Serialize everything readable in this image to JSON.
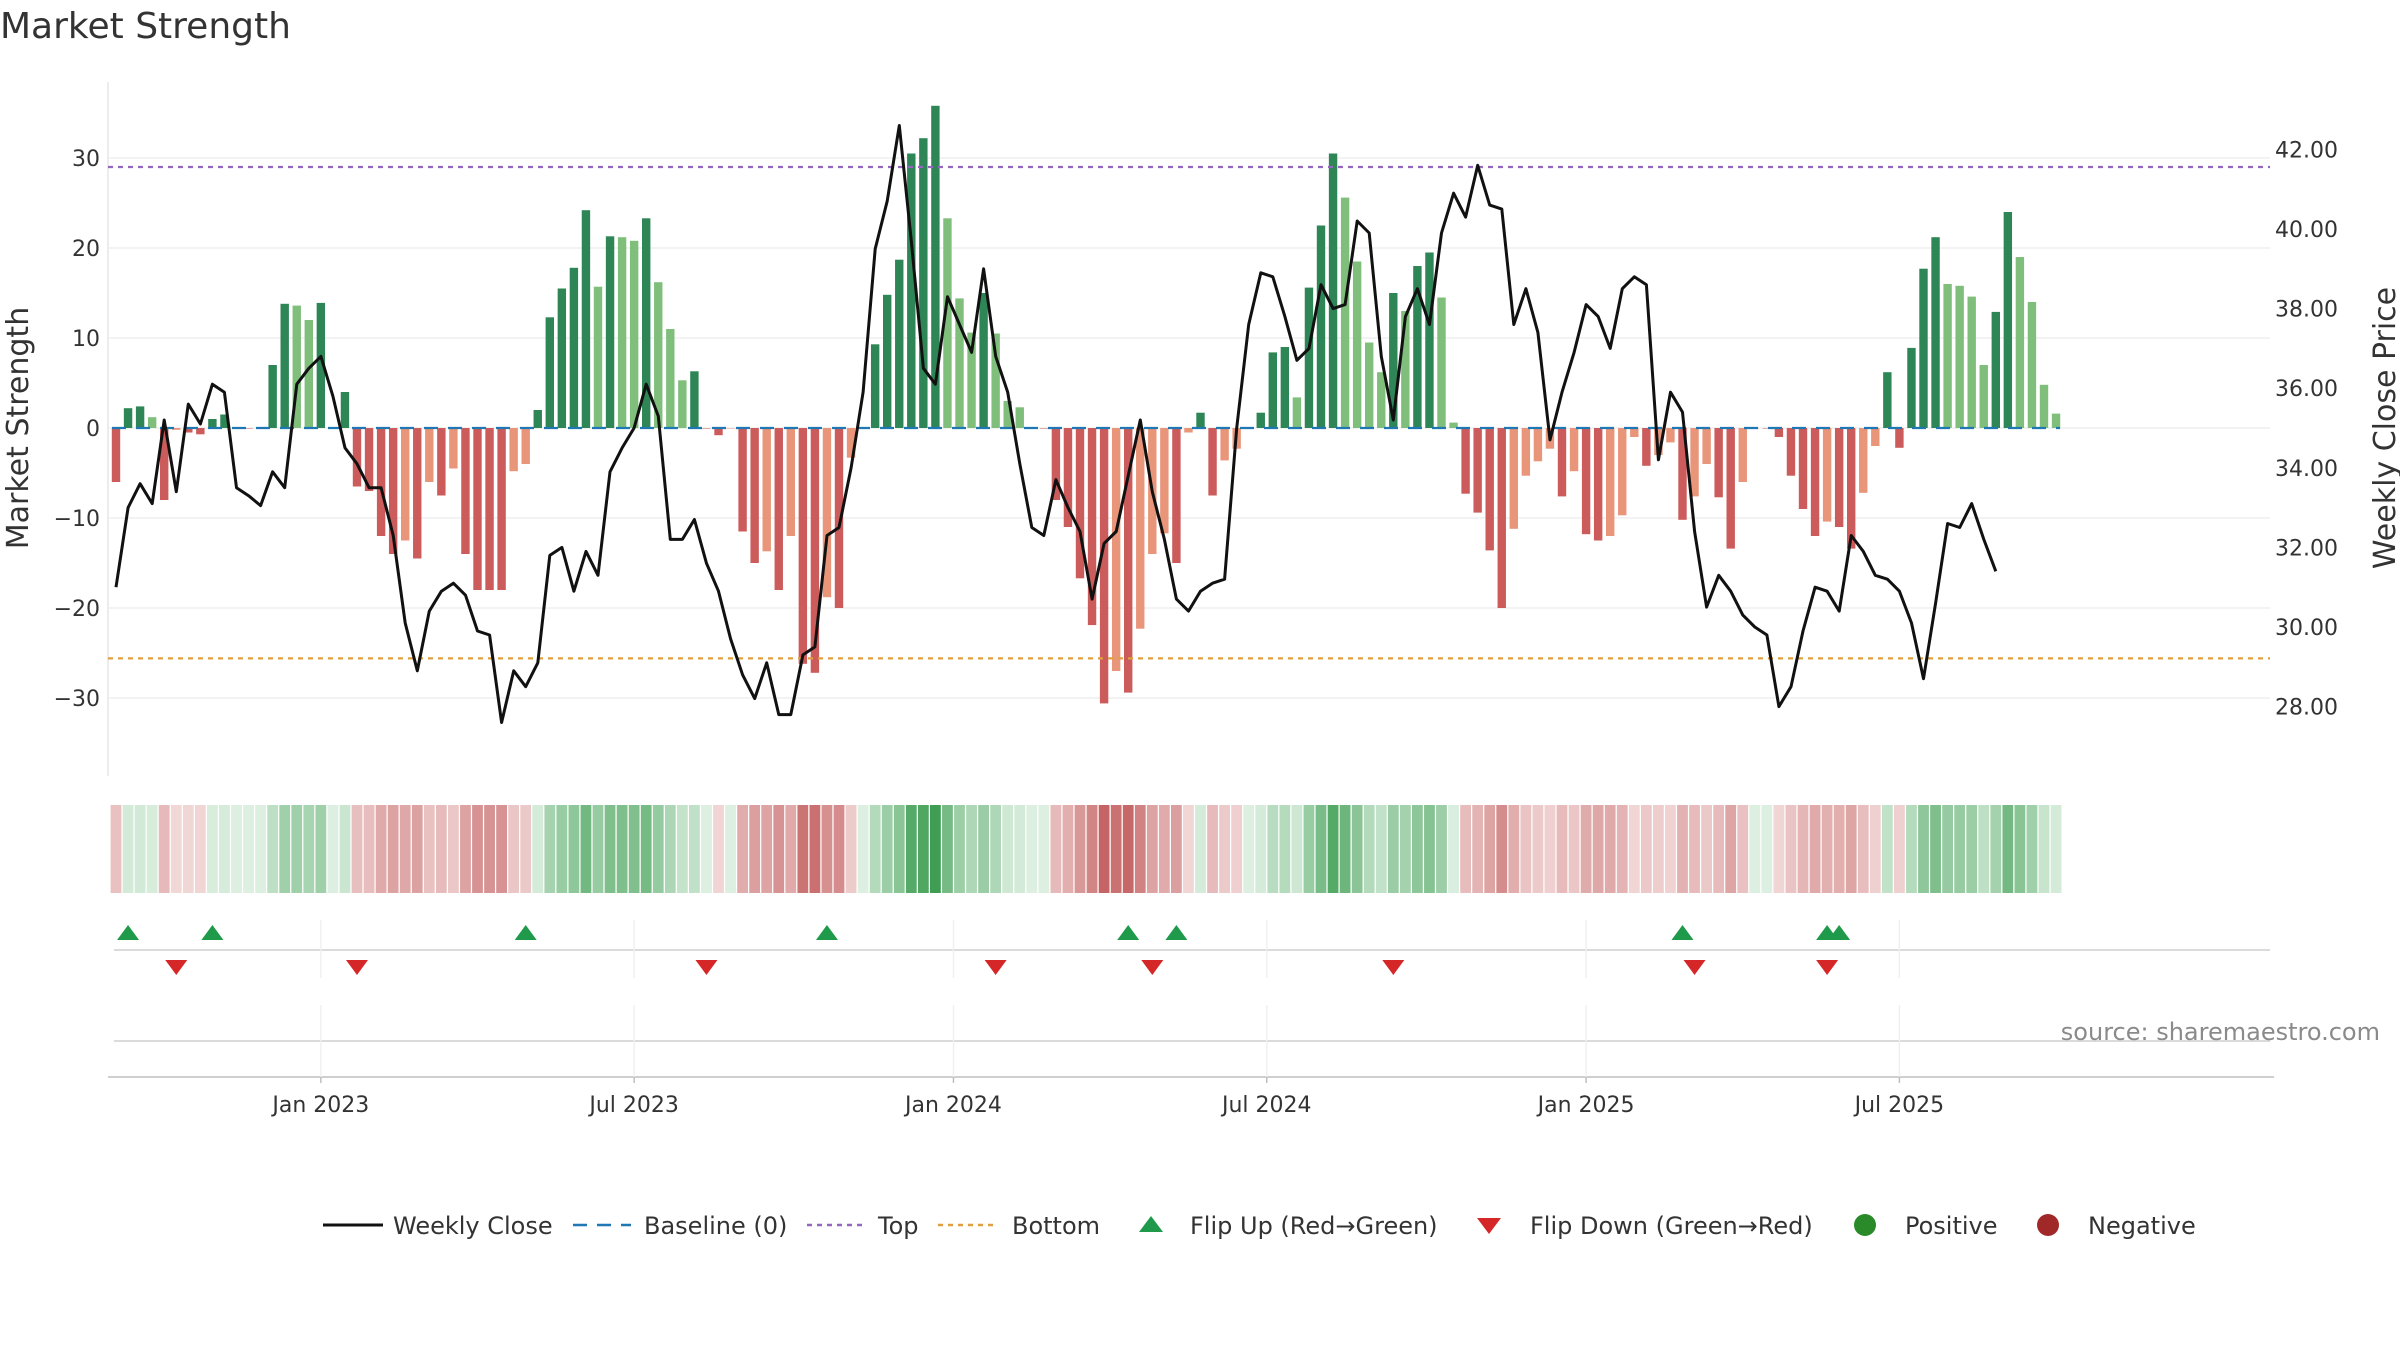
{
  "chart_data": {
    "type": "bar",
    "title": "Market Strength",
    "ylabel": "Market Strength",
    "y2label": "Weekly Close Price",
    "ylim": [
      -39,
      39
    ],
    "y2lim": [
      26.6,
      43.5
    ],
    "yticks": [
      30,
      20,
      10,
      0,
      -10,
      -20,
      -30
    ],
    "ytick_labels": [
      "30",
      "20",
      "10",
      "0",
      "−10",
      "−20",
      "−30"
    ],
    "y2ticks": [
      42,
      40,
      38,
      36,
      34,
      32,
      30,
      28
    ],
    "y2tick_labels": [
      "42.00",
      "40.00",
      "38.00",
      "36.00",
      "34.00",
      "32.00",
      "30.00",
      "28.00"
    ],
    "top_line": 29,
    "bottom_line": -25.6,
    "xticks": [
      {
        "label": "Jan 2023",
        "week": 17
      },
      {
        "label": "Jul 2023",
        "week": 43
      },
      {
        "label": "Jan 2024",
        "week": 69.5
      },
      {
        "label": "Jul 2024",
        "week": 95.5
      },
      {
        "label": "Jan 2025",
        "week": 122
      },
      {
        "label": "Jul 2025",
        "week": 148
      }
    ],
    "strength": [
      -6,
      2.2,
      2.4,
      1.2,
      -8,
      -0.2,
      -0.5,
      -0.7,
      1,
      1.5,
      0,
      0,
      0,
      7,
      13.8,
      13.6,
      12,
      13.9,
      0,
      4,
      -6.5,
      -7,
      -12,
      -14,
      -12.5,
      -14.5,
      -6,
      -7.5,
      -4.5,
      -14,
      -18,
      -18,
      -18,
      -4.8,
      -4,
      2,
      12.3,
      15.5,
      17.8,
      24.2,
      15.7,
      21.3,
      21.2,
      20.8,
      23.3,
      16.2,
      11,
      5.3,
      6.3,
      0,
      -0.8,
      0,
      -11.5,
      -15,
      -13.7,
      -18,
      -12,
      -26.2,
      -27.2,
      -18.8,
      -20,
      -3.3,
      0,
      9.3,
      14.8,
      18.7,
      30.5,
      32.2,
      35.8,
      23.3,
      14.4,
      10.6,
      15,
      10.5,
      3,
      2.3,
      0,
      0,
      -8,
      -11,
      -16.7,
      -21.9,
      -30.6,
      -27,
      -29.4,
      -22.3,
      -14,
      -11.7,
      -15,
      -0.5,
      1.7,
      -7.5,
      -3.6,
      -2.3,
      0,
      1.7,
      8.4,
      9,
      3.4,
      15.6,
      22.5,
      30.5,
      25.6,
      18.5,
      9.5,
      6.2,
      15,
      13,
      18,
      19.5,
      14.5,
      0.6,
      -7.3,
      -9.4,
      -13.6,
      -20,
      -11.2,
      -5.3,
      -3.7,
      -2.3,
      -7.6,
      -4.8,
      -11.8,
      -12.5,
      -12,
      -9.7,
      -1,
      -4.2,
      -3,
      -1.6,
      -10.2,
      -7.6,
      -4,
      -7.7,
      -13.4,
      -6,
      0,
      0,
      -1,
      -5.3,
      -9,
      -12,
      -10.4,
      -11,
      -13.4,
      -7.2,
      -2,
      6.2,
      -2.2,
      8.9,
      17.7,
      21.2,
      16,
      15.8,
      14.6,
      7,
      12.9,
      24,
      19,
      14,
      4.8,
      1.6
    ],
    "price": [
      31,
      33,
      33.6,
      33.1,
      35.2,
      33.4,
      35.6,
      35.1,
      36.1,
      35.9,
      33.5,
      33.3,
      33.05,
      33.9,
      33.5,
      36.1,
      36.5,
      36.8,
      35.8,
      34.5,
      34.1,
      33.5,
      33.5,
      32.3,
      30.1,
      28.9,
      30.4,
      30.9,
      31.1,
      30.8,
      29.9,
      29.8,
      27.6,
      28.9,
      28.5,
      29.1,
      31.8,
      32.0,
      30.9,
      31.9,
      31.3,
      33.9,
      34.5,
      35.0,
      36.1,
      35.3,
      32.2,
      32.2,
      32.7,
      31.6,
      30.9,
      29.7,
      28.8,
      28.2,
      29.1,
      27.8,
      27.8,
      29.3,
      29.5,
      32.3,
      32.5,
      34.0,
      35.9,
      39.5,
      40.7,
      42.6,
      39.7,
      36.5,
      36.1,
      38.3,
      37.6,
      36.9,
      39.0,
      36.8,
      35.9,
      34.1,
      32.5,
      32.3,
      33.7,
      33.0,
      32.4,
      30.7,
      32.1,
      32.4,
      33.8,
      35.2,
      33.4,
      32.2,
      30.7,
      30.4,
      30.9,
      31.1,
      31.2,
      35.0,
      37.6,
      38.9,
      38.8,
      37.8,
      36.7,
      37.0,
      38.6,
      38.0,
      38.1,
      40.2,
      39.9,
      36.8,
      35.2,
      37.8,
      38.5,
      37.6,
      39.9,
      40.9,
      40.3,
      41.6,
      40.6,
      40.5,
      37.6,
      38.5,
      37.4,
      34.7,
      35.9,
      36.9,
      38.1,
      37.8,
      37.0,
      38.5,
      38.8,
      38.6,
      34.2,
      35.9,
      35.4,
      32.4,
      30.5,
      31.3,
      30.9,
      30.3,
      30.0,
      29.8,
      28.0,
      28.5,
      29.9,
      31.0,
      30.9,
      30.4,
      32.3,
      31.9,
      31.3,
      31.2,
      30.9,
      30.1,
      28.7,
      30.6,
      32.6,
      32.5,
      33.1,
      32.2,
      31.4
    ],
    "flip_up_weeks": [
      1,
      8,
      34,
      59,
      84,
      88,
      130,
      142,
      143
    ],
    "flip_down_weeks": [
      5,
      20,
      49,
      73,
      86,
      106,
      131,
      142
    ],
    "legend": [
      "Weekly Close",
      "Baseline (0)",
      "Top",
      "Bottom",
      "Flip Up (Red→Green)",
      "Flip Down (Green→Red)",
      "Positive",
      "Negative"
    ],
    "colors": {
      "pos_strong": "#2e8555",
      "pos_light": "#7fbf7b",
      "neg_strong": "#cc5b5b",
      "neg_light": "#e8957a",
      "price_line": "#111111",
      "baseline": "#1f77b4",
      "top": "#9467bd",
      "bottom": "#e0a040",
      "flip_up": "#1f9a4a",
      "flip_down": "#d62728",
      "positive": "#2a8a2a",
      "negative": "#a02828"
    }
  },
  "source": "source: sharemaestro.com"
}
